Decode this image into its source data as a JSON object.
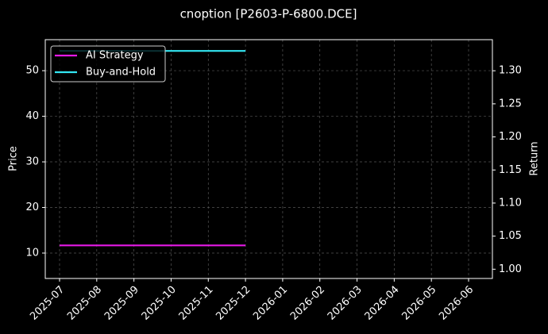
{
  "chart_data": {
    "type": "line",
    "title": "cnoption [P2603-P-6800.DCE]",
    "y_label": "Price",
    "y2_label": "Return",
    "x": [
      "2025-07",
      "2025-12"
    ],
    "series": [
      {
        "name": "AI Strategy",
        "color": "#e619e6",
        "values": [
          1.036,
          1.036
        ],
        "axis": "y2"
      },
      {
        "name": "Buy-and-Hold",
        "color": "#33e6f2",
        "values": [
          1.33,
          1.33
        ],
        "axis": "y2"
      }
    ],
    "xticks": [
      "2025-07",
      "2025-08",
      "2025-09",
      "2025-10",
      "2025-11",
      "2025-12",
      "2026-01",
      "2026-02",
      "2026-03",
      "2026-04",
      "2026-05",
      "2026-06"
    ],
    "ylim": [
      4.43,
      56.8
    ],
    "yticks": [
      10,
      20,
      30,
      40,
      50
    ],
    "y2lim": [
      0.986,
      1.347
    ],
    "y2ticks": [
      {
        "value": 1.0,
        "label": "1.00"
      },
      1.05,
      {
        "value": 1.1,
        "label": "1.10"
      },
      1.15,
      {
        "value": 1.2,
        "label": "1.20"
      },
      1.25,
      {
        "value": 1.3,
        "label": "1.30"
      }
    ],
    "grid": true,
    "legend": "upper left"
  }
}
